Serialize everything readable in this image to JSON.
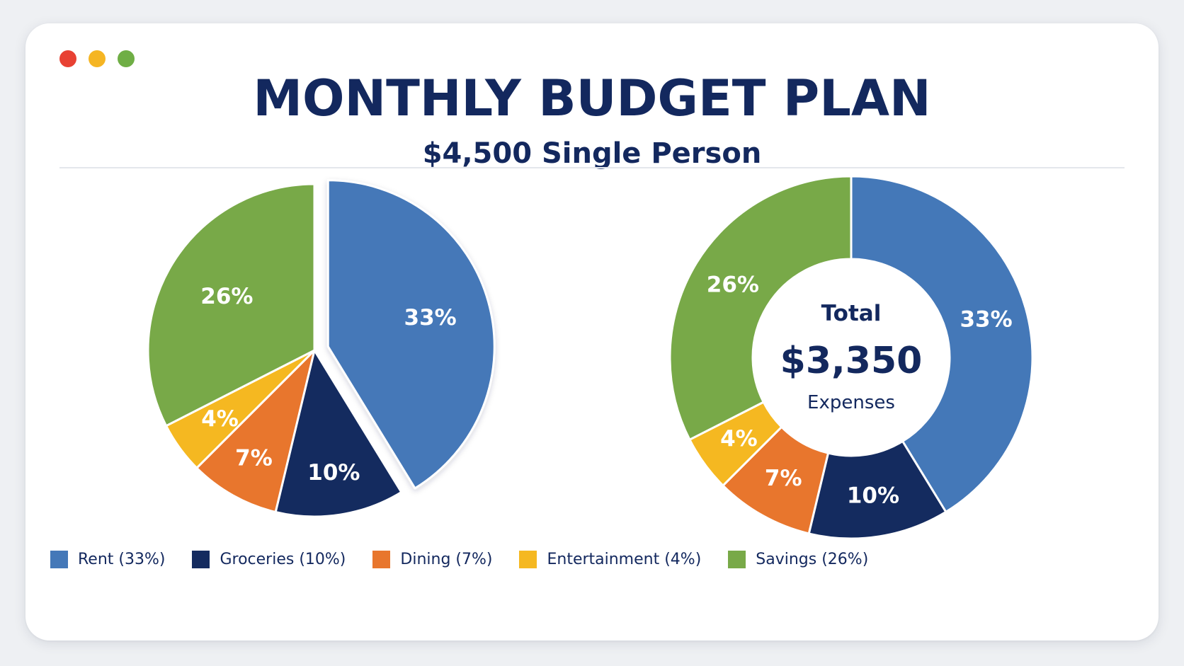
{
  "window": {
    "traffic_lights": [
      "#e84133",
      "#f5b523",
      "#6fae45"
    ]
  },
  "header": {
    "title": "MONTHLY BUDGET PLAN",
    "subtitle": "$4,500 Single Person"
  },
  "chart_data": [
    {
      "type": "pie",
      "exploded": "Rent",
      "categories": [
        "Rent",
        "Groceries",
        "Dining",
        "Entertainment",
        "Savings"
      ],
      "values": [
        33,
        10,
        7,
        4,
        26
      ],
      "labels": [
        "33%",
        "10%",
        "7%",
        "4%",
        "26%"
      ],
      "colors": [
        "#4478b8",
        "#142b5f",
        "#e8762d",
        "#f5b821",
        "#78a948"
      ],
      "start": "top",
      "direction": "clockwise"
    },
    {
      "type": "donut",
      "categories": [
        "Rent",
        "Groceries",
        "Dining",
        "Entertainment",
        "Savings"
      ],
      "values": [
        33,
        10,
        7,
        4,
        26
      ],
      "labels": [
        "33%",
        "10%",
        "7%",
        "4%",
        "26%"
      ],
      "colors": [
        "#4478b8",
        "#142b5f",
        "#e8762d",
        "#f5b821",
        "#78a948"
      ],
      "start": "top",
      "direction": "clockwise",
      "center": {
        "line1": "Total",
        "line2": "$3,350",
        "line3": "Expenses"
      }
    }
  ],
  "legend": [
    {
      "label": "Rent (33%)",
      "color": "#4478b8"
    },
    {
      "label": "Groceries (10%)",
      "color": "#142b5f"
    },
    {
      "label": "Dining (7%)",
      "color": "#e8762d"
    },
    {
      "label": "Entertainment (4%)",
      "color": "#f5b821"
    },
    {
      "label": "Savings (26%)",
      "color": "#78a948"
    }
  ]
}
